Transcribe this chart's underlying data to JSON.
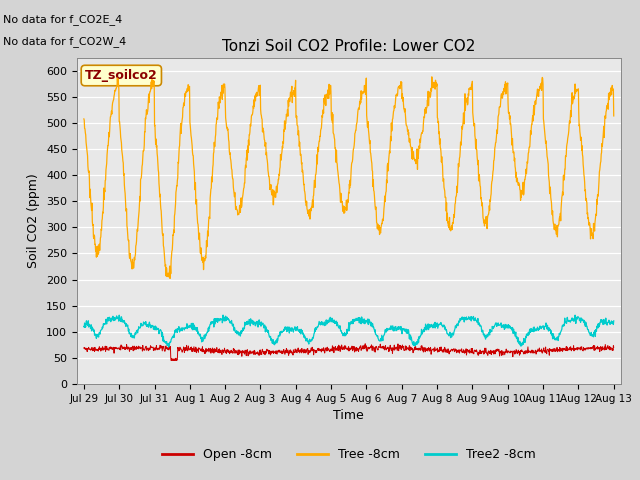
{
  "title": "Tonzi Soil CO2 Profile: Lower CO2",
  "ylabel": "Soil CO2 (ppm)",
  "xlabel": "Time",
  "annotations": [
    "No data for f_CO2E_4",
    "No data for f_CO2W_4"
  ],
  "legend_label": "TZ_soilco2",
  "ylim": [
    0,
    625
  ],
  "yticks": [
    0,
    50,
    100,
    150,
    200,
    250,
    300,
    350,
    400,
    450,
    500,
    550,
    600
  ],
  "bg_color": "#e0e0e0",
  "plot_bg_color": "#e8e8e8",
  "line_colors": {
    "open": "#cc0000",
    "tree": "#ffaa00",
    "tree2": "#00cccc"
  },
  "legend_entries": [
    "Open -8cm",
    "Tree -8cm",
    "Tree2 -8cm"
  ],
  "xticklabels": [
    "Jul 29",
    "Jul 30",
    "Jul 31",
    "Aug 1",
    "Aug 2",
    "Aug 3",
    "Aug 4",
    "Aug 5",
    "Aug 6",
    "Aug 7",
    "Aug 8",
    "Aug 9",
    "Aug 10",
    "Aug 11",
    "Aug 12",
    "Aug 13"
  ],
  "num_days": 15,
  "pts_per_day": 96,
  "title_fontsize": 11,
  "axis_fontsize": 9,
  "tick_fontsize": 8
}
